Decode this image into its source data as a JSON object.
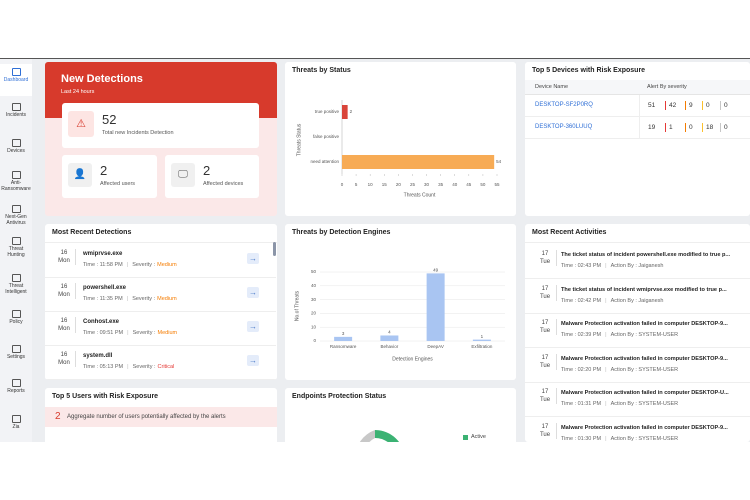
{
  "sidebar": {
    "items": [
      "Dashboard",
      "Incidents",
      "Devices",
      "Anti-Ransomware",
      "Next-Gen Antivirus",
      "Threat Hunting",
      "Threat Intelligent",
      "Policy",
      "Settings",
      "Reports",
      "Zia"
    ]
  },
  "new_detections": {
    "title": "New Detections",
    "subtitle": "Last 24 hours",
    "total": {
      "value": 52,
      "label": "Total new Incidents Detection"
    },
    "users": {
      "value": 2,
      "label": "Affected users"
    },
    "devices": {
      "value": 2,
      "label": "Affected devices"
    }
  },
  "chart_data": [
    {
      "type": "hbar",
      "title": "Threats by Status",
      "categories": [
        "true positive",
        "false positive",
        "need attention"
      ],
      "values": [
        2,
        0,
        54
      ],
      "colors": [
        "#d9453a",
        "#9e9e9e",
        "#f7ab55"
      ],
      "xlim": [
        0,
        55
      ],
      "xticks": [
        0,
        5,
        10,
        15,
        20,
        25,
        30,
        35,
        40,
        45,
        50,
        55
      ],
      "x_label": "Threats Count",
      "y_label": "Threats Status"
    },
    {
      "type": "bar",
      "title": "Threats by Detection Engines",
      "categories": [
        "Ransomware",
        "Behavior",
        "DeepAV",
        "Exfiltration"
      ],
      "values": [
        3,
        4,
        49,
        1
      ],
      "color": "#a9c5f2",
      "ylim": [
        0,
        50
      ],
      "yticks": [
        0,
        10,
        20,
        30,
        40,
        50
      ],
      "grid": true,
      "x_label": "Detection Engines",
      "y_label": "No.of Threats"
    }
  ],
  "top_devices": {
    "title": "Top 5 Devices with Risk Exposure",
    "columns": [
      "Device Name",
      "Alert By severity"
    ],
    "rows": [
      {
        "name": "DESKTOP-SF2P0RQ",
        "counts": [
          51,
          42,
          9,
          0,
          0
        ]
      },
      {
        "name": "DESKTOP-360LUUQ",
        "counts": [
          19,
          1,
          0,
          18,
          0
        ]
      }
    ],
    "bar_colors": [
      "#e53935",
      "#f57c00",
      "#fbc02d",
      "#c7c7c7"
    ]
  },
  "recent_detections": {
    "title": "Most Recent Detections",
    "items": [
      {
        "day": "16",
        "weekday": "Mon",
        "name": "wmiprvse.exe",
        "time": "Time : 11:58 PM",
        "severity_label": "Severity :",
        "severity": "Medium",
        "severity_color": "#f57c00"
      },
      {
        "day": "16",
        "weekday": "Mon",
        "name": "powershell.exe",
        "time": "Time : 11:35 PM",
        "severity_label": "Severity :",
        "severity": "Medium",
        "severity_color": "#f57c00"
      },
      {
        "day": "16",
        "weekday": "Mon",
        "name": "Conhost.exe",
        "time": "Time : 09:51 PM",
        "severity_label": "Severity :",
        "severity": "Medium",
        "severity_color": "#f57c00"
      },
      {
        "day": "16",
        "weekday": "Mon",
        "name": "system.dll",
        "time": "Time : 05:13 PM",
        "severity_label": "Severity :",
        "severity": "Critical",
        "severity_color": "#e53935"
      }
    ]
  },
  "recent_activities": {
    "title": "Most Recent Activities",
    "items": [
      {
        "day": "17",
        "weekday": "Tue",
        "text": "The ticket status of incident powershell.exe modified to true p...",
        "time": "Time : 02:43 PM",
        "action": "Action By : Jaiganesh"
      },
      {
        "day": "17",
        "weekday": "Tue",
        "text": "The ticket status of incident wmiprvse.exe modified to true p...",
        "time": "Time : 02:42 PM",
        "action": "Action By : Jaiganesh"
      },
      {
        "day": "17",
        "weekday": "Tue",
        "text": "Malware Protection activation failed in computer DESKTOP-9...",
        "time": "Time : 02:39 PM",
        "action": "Action By : SYSTEM-USER"
      },
      {
        "day": "17",
        "weekday": "Tue",
        "text": "Malware Protection activation failed in computer DESKTOP-9...",
        "time": "Time : 02:20 PM",
        "action": "Action By : SYSTEM-USER"
      },
      {
        "day": "17",
        "weekday": "Tue",
        "text": "Malware Protection activation failed in computer DESKTOP-U...",
        "time": "Time : 01:31 PM",
        "action": "Action By : SYSTEM-USER"
      },
      {
        "day": "17",
        "weekday": "Tue",
        "text": "Malware Protection activation failed in computer DESKTOP-9...",
        "time": "Time : 01:30 PM",
        "action": "Action By : SYSTEM-USER"
      }
    ]
  },
  "top_users": {
    "title": "Top 5 Users with Risk Exposure",
    "count": 2,
    "text": "Aggregate number of users potentially affected by the alerts"
  },
  "endpoints": {
    "title": "Endpoints Protection Status",
    "legend": [
      {
        "name": "Active",
        "color": "#3bb273"
      }
    ]
  }
}
